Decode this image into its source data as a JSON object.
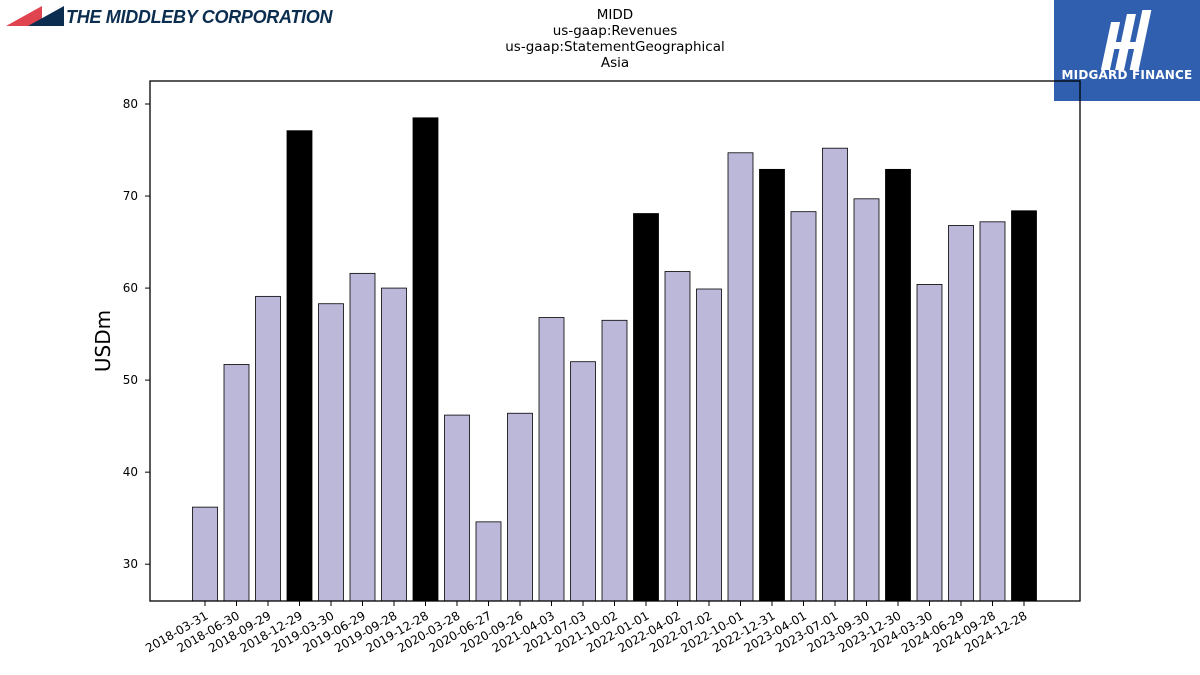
{
  "company": {
    "name": "THE MIDDLEBY CORPORATION",
    "logo_colors": {
      "primary": "#0b2d4f",
      "accent": "#e0454f"
    }
  },
  "brand": {
    "name": "MIDGARD FINANCE",
    "color": "#2f5fae"
  },
  "chart_data": {
    "type": "bar",
    "title_lines": [
      "MIDD",
      "us-gaap:Revenues",
      "us-gaap:StatementGeographical",
      "Asia"
    ],
    "xlabel": "",
    "ylabel": "USDm",
    "ylim": [
      26,
      82.5
    ],
    "yticks": [
      30,
      40,
      50,
      60,
      70,
      80
    ],
    "grid": false,
    "colors": {
      "quarter": "#bcb8da",
      "year_end": "#000000",
      "edge": "#000000"
    },
    "categories": [
      "2018-03-31",
      "2018-06-30",
      "2018-09-29",
      "2018-12-29",
      "2019-03-30",
      "2019-06-29",
      "2019-09-28",
      "2019-12-28",
      "2020-03-28",
      "2020-06-27",
      "2020-09-26",
      "2021-04-03",
      "2021-07-03",
      "2021-10-02",
      "2022-01-01",
      "2022-04-02",
      "2022-07-02",
      "2022-10-01",
      "2022-12-31",
      "2023-04-01",
      "2023-07-01",
      "2023-09-30",
      "2023-12-30",
      "2024-03-30",
      "2024-06-29",
      "2024-09-28",
      "2024-12-28"
    ],
    "values": [
      36.2,
      51.7,
      59.1,
      77.1,
      58.3,
      61.6,
      60.0,
      78.5,
      46.2,
      34.6,
      46.4,
      56.8,
      52.0,
      56.5,
      68.1,
      61.8,
      59.9,
      74.7,
      72.9,
      68.3,
      75.2,
      69.7,
      72.9,
      60.4,
      66.8,
      67.2,
      68.4
    ],
    "highlight": [
      false,
      false,
      false,
      true,
      false,
      false,
      false,
      true,
      false,
      false,
      false,
      false,
      false,
      false,
      true,
      false,
      false,
      false,
      true,
      false,
      false,
      false,
      true,
      false,
      false,
      false,
      true
    ]
  }
}
